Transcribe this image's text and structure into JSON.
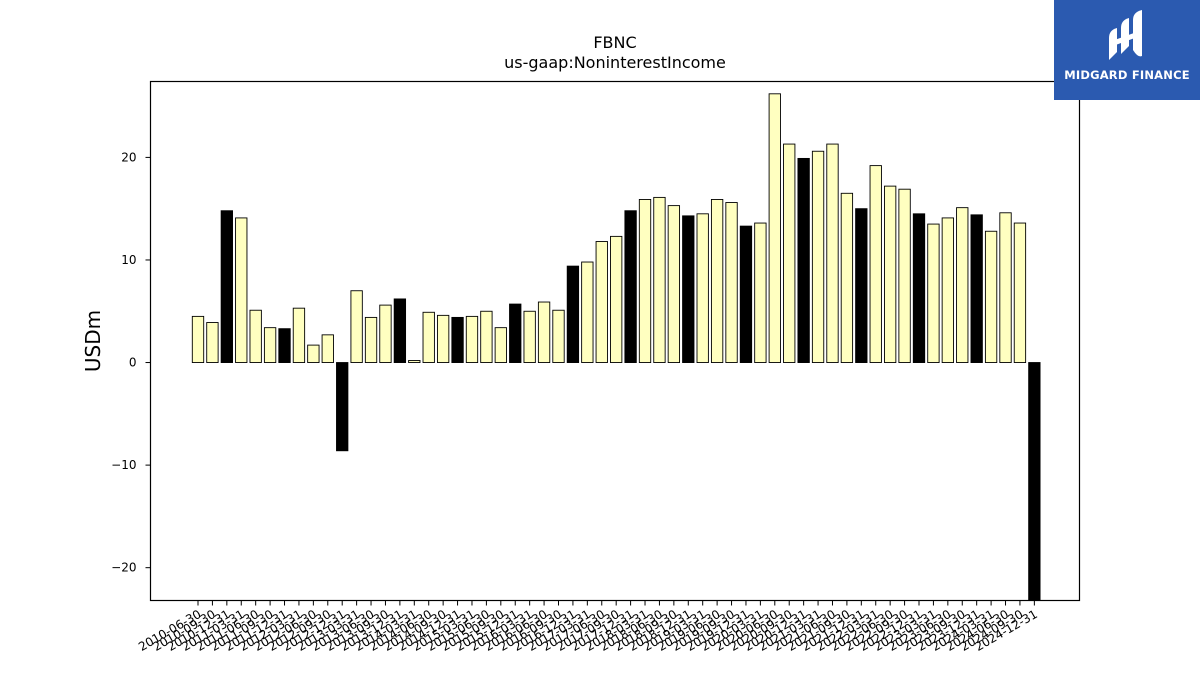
{
  "brand": {
    "name": "MIDGARD FINANCE",
    "bg_color": "#2b5ab0"
  },
  "colors": {
    "regular": "#ffffc0",
    "year_end": "#000000",
    "edge": "#000000"
  },
  "chart_data": {
    "type": "bar",
    "title": "FBNC",
    "subtitle": "us-gaap:NoninterestIncome",
    "xlabel": "",
    "ylabel": "USDm",
    "ylim": [
      -23.2,
      27.4
    ],
    "yticks": [
      -20,
      -10,
      0,
      10,
      20
    ],
    "grid": false,
    "categories": [
      "2010-06-30",
      "2010-09-30",
      "2010-12-31",
      "2011-03-31",
      "2011-06-30",
      "2011-09-30",
      "2011-12-31",
      "2012-03-31",
      "2012-06-30",
      "2012-09-30",
      "2012-12-31",
      "2013-03-31",
      "2013-06-30",
      "2013-09-30",
      "2013-12-31",
      "2014-03-31",
      "2014-06-30",
      "2014-09-30",
      "2014-12-31",
      "2015-03-31",
      "2015-06-30",
      "2015-09-30",
      "2015-12-31",
      "2016-03-31",
      "2016-06-30",
      "2016-09-30",
      "2016-12-31",
      "2017-03-31",
      "2017-06-30",
      "2017-09-30",
      "2017-12-31",
      "2018-03-31",
      "2018-06-30",
      "2018-09-30",
      "2018-12-31",
      "2019-03-31",
      "2019-06-30",
      "2019-09-30",
      "2019-12-31",
      "2020-03-31",
      "2020-06-30",
      "2020-09-30",
      "2020-12-31",
      "2021-03-31",
      "2021-06-30",
      "2021-09-30",
      "2021-12-31",
      "2022-03-31",
      "2022-06-30",
      "2022-09-30",
      "2022-12-31",
      "2023-03-31",
      "2023-06-30",
      "2023-09-30",
      "2023-12-31",
      "2024-03-31",
      "2024-06-30",
      "2024-09-30",
      "2024-12-31"
    ],
    "values": [
      4.5,
      3.9,
      14.8,
      14.1,
      5.1,
      3.4,
      3.3,
      5.3,
      1.7,
      2.7,
      -8.6,
      7.0,
      4.4,
      5.6,
      6.2,
      0.2,
      4.9,
      4.6,
      4.4,
      4.5,
      5.0,
      3.4,
      5.7,
      5.0,
      5.9,
      5.1,
      9.4,
      9.8,
      11.8,
      12.3,
      14.8,
      15.9,
      16.1,
      15.3,
      14.3,
      14.5,
      15.9,
      15.6,
      13.3,
      13.6,
      26.2,
      21.3,
      19.9,
      20.6,
      21.3,
      16.5,
      15.0,
      19.2,
      17.2,
      16.9,
      14.5,
      13.5,
      14.1,
      15.1,
      14.4,
      12.8,
      14.6,
      13.6,
      -23.2
    ]
  }
}
